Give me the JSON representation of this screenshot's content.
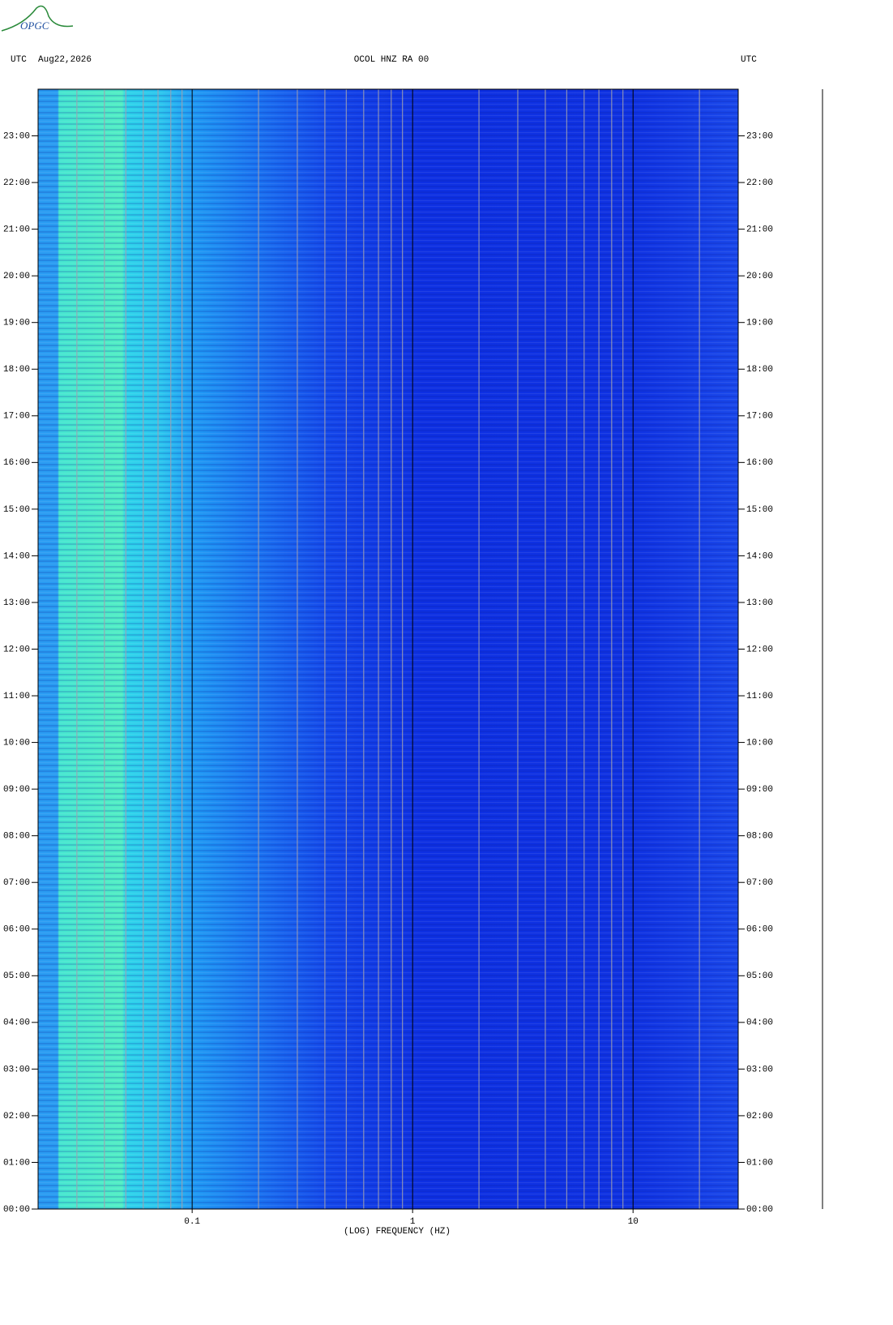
{
  "logo": "OPGC",
  "chart_data": {
    "type": "spectrogram",
    "header_left": "UTC",
    "date": "Aug22,2026",
    "title": "OCOL HNZ RA 00",
    "header_right": "UTC",
    "xlabel": "(LOG) FREQUENCY (HZ)",
    "xscale": "log",
    "xlim": [
      0.02,
      30
    ],
    "xticks": [
      0.1,
      1,
      10
    ],
    "xgrid": [
      0.02,
      0.03,
      0.04,
      0.05,
      0.06,
      0.07,
      0.08,
      0.09,
      0.1,
      0.2,
      0.3,
      0.4,
      0.5,
      0.6,
      0.7,
      0.8,
      0.9,
      1,
      2,
      3,
      4,
      5,
      6,
      7,
      8,
      9,
      10,
      20,
      30
    ],
    "ylim": [
      0,
      24
    ],
    "yticks": [
      {
        "value": 0,
        "label": "00:00"
      },
      {
        "value": 1,
        "label": "01:00"
      },
      {
        "value": 2,
        "label": "02:00"
      },
      {
        "value": 3,
        "label": "03:00"
      },
      {
        "value": 4,
        "label": "04:00"
      },
      {
        "value": 5,
        "label": "05:00"
      },
      {
        "value": 6,
        "label": "06:00"
      },
      {
        "value": 7,
        "label": "07:00"
      },
      {
        "value": 8,
        "label": "08:00"
      },
      {
        "value": 9,
        "label": "09:00"
      },
      {
        "value": 10,
        "label": "10:00"
      },
      {
        "value": 11,
        "label": "11:00"
      },
      {
        "value": 12,
        "label": "12:00"
      },
      {
        "value": 13,
        "label": "13:00"
      },
      {
        "value": 14,
        "label": "14:00"
      },
      {
        "value": 15,
        "label": "15:00"
      },
      {
        "value": 16,
        "label": "16:00"
      },
      {
        "value": 17,
        "label": "17:00"
      },
      {
        "value": 18,
        "label": "18:00"
      },
      {
        "value": 19,
        "label": "19:00"
      },
      {
        "value": 20,
        "label": "20:00"
      },
      {
        "value": 21,
        "label": "21:00"
      },
      {
        "value": 22,
        "label": "22:00"
      },
      {
        "value": 23,
        "label": "23:00"
      }
    ]
  }
}
